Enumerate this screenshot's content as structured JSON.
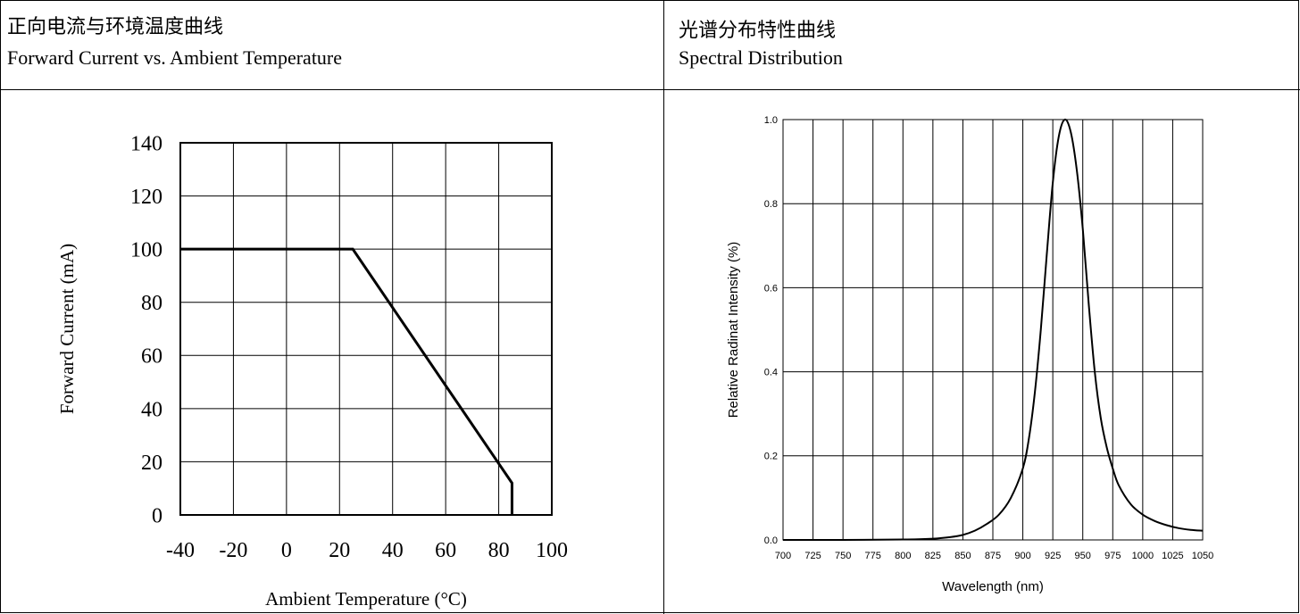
{
  "left_panel": {
    "title_cn": "正向电流与环境温度曲线",
    "title_en": "Forward Current vs. Ambient Temperature"
  },
  "right_panel": {
    "title_cn": "光谱分布特性曲线",
    "title_en": "Spectral Distribution"
  },
  "chart_data": [
    {
      "type": "line",
      "xlabel": "Ambient Temperature (°C)",
      "ylabel": "Forward Current (mA)",
      "xlim": [
        -40,
        100
      ],
      "ylim": [
        0,
        140
      ],
      "xticks": [
        -40,
        -20,
        0,
        20,
        40,
        60,
        80,
        100
      ],
      "yticks": [
        0,
        20,
        40,
        60,
        80,
        100,
        120,
        140
      ],
      "grid": true,
      "series": [
        {
          "x": [
            -40,
            25,
            85,
            85
          ],
          "y": [
            100,
            100,
            12,
            0
          ]
        }
      ]
    },
    {
      "type": "line",
      "xlabel": "Wavelength (nm)",
      "ylabel": "Relative Radinat Intensity (%)",
      "xlim": [
        700,
        1050
      ],
      "ylim": [
        0,
        1.0
      ],
      "xticks": [
        700,
        725,
        750,
        775,
        800,
        825,
        850,
        875,
        900,
        925,
        950,
        975,
        1000,
        1025,
        1050
      ],
      "yticks": [
        "0.0",
        "0.2",
        "0.4",
        "0.6",
        "0.8",
        "1.0"
      ],
      "grid": true,
      "series": [
        {
          "x": [
            700,
            750,
            800,
            825,
            840,
            850,
            860,
            870,
            880,
            890,
            900,
            905,
            910,
            915,
            920,
            925,
            930,
            935,
            940,
            945,
            950,
            955,
            960,
            965,
            970,
            975,
            980,
            990,
            1000,
            1010,
            1020,
            1030,
            1040,
            1050
          ],
          "y": [
            0.0,
            0.0,
            0.001,
            0.003,
            0.007,
            0.012,
            0.022,
            0.038,
            0.06,
            0.1,
            0.17,
            0.24,
            0.35,
            0.5,
            0.68,
            0.85,
            0.96,
            1.0,
            0.97,
            0.88,
            0.74,
            0.56,
            0.4,
            0.29,
            0.22,
            0.17,
            0.13,
            0.085,
            0.06,
            0.045,
            0.035,
            0.028,
            0.024,
            0.022
          ]
        }
      ]
    }
  ]
}
